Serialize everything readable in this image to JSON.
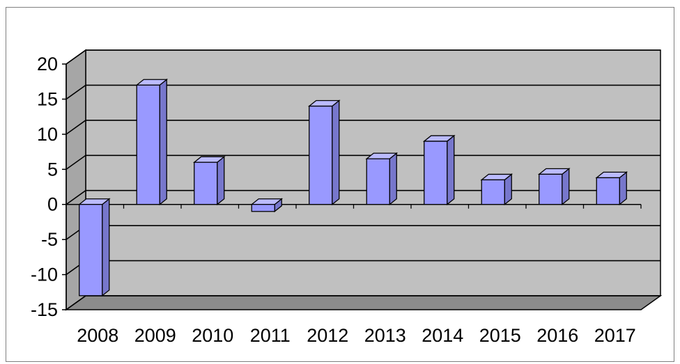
{
  "chart_data": {
    "type": "bar",
    "style": "3d-column",
    "categories": [
      "2008",
      "2009",
      "2010",
      "2011",
      "2012",
      "2013",
      "2014",
      "2015",
      "2016",
      "2017"
    ],
    "values": [
      -13,
      17,
      6,
      -1,
      14,
      6.5,
      9,
      3.5,
      4.3,
      3.8
    ],
    "ylim": [
      -15,
      20
    ],
    "yticks": [
      "20",
      "15",
      "10",
      "5",
      "0",
      "-5",
      "-10",
      "-15"
    ],
    "ytick_values": [
      20,
      15,
      10,
      5,
      0,
      -5,
      -10,
      -15
    ],
    "grid": true,
    "colors": {
      "bar_front": "#9999ff",
      "bar_side": "#7777cc",
      "bar_top": "#bbbbff",
      "plot_back": "#c0c0c0",
      "plot_side": "#a6a6a6",
      "floor": "#8c8c8c"
    }
  }
}
